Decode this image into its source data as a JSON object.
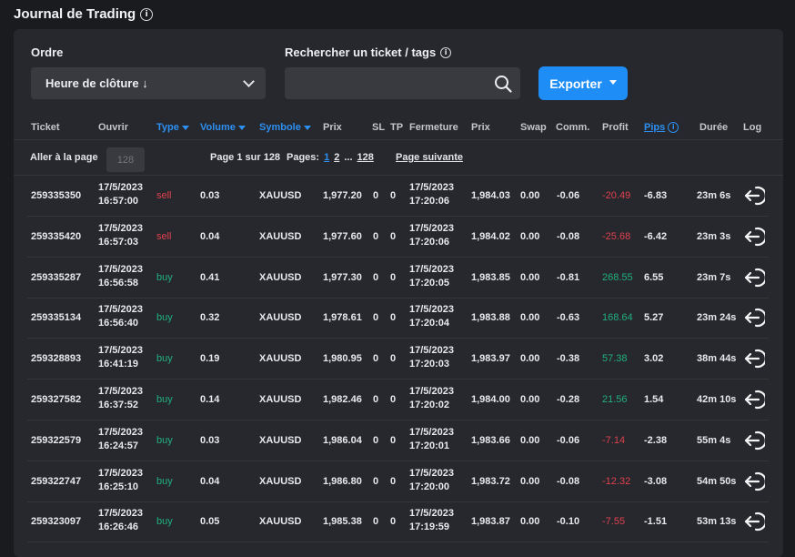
{
  "page": {
    "title": "Journal de Trading"
  },
  "filters": {
    "order_label": "Ordre",
    "order_value": "Heure de clôture ↓",
    "search_label": "Rechercher un ticket / tags",
    "search_value": "",
    "export_label": "Exporter"
  },
  "table": {
    "headers": {
      "ticket": "Ticket",
      "open": "Ouvrir",
      "type": "Type",
      "volume": "Volume",
      "symbol": "Symbole",
      "price_open": "Prix",
      "sl": "SL",
      "tp": "TP",
      "close": "Fermeture",
      "price_close": "Prix",
      "swap": "Swap",
      "comm": "Comm.",
      "profit": "Profit",
      "pips": "Pips",
      "duration": "Durée",
      "log": "Log"
    },
    "rows": [
      {
        "ticket": "259335350",
        "open_date": "17/5/2023",
        "open_time": "16:57:00",
        "type": "sell",
        "volume": "0.03",
        "symbol": "XAUUSD",
        "price_open": "1,977.20",
        "sl": "0",
        "tp": "0",
        "close_date": "17/5/2023",
        "close_time": "17:20:06",
        "price_close": "1,984.03",
        "swap": "0.00",
        "comm": "-0.06",
        "profit": "-20.49",
        "pips": "-6.83",
        "duration": "23m 6s"
      },
      {
        "ticket": "259335420",
        "open_date": "17/5/2023",
        "open_time": "16:57:03",
        "type": "sell",
        "volume": "0.04",
        "symbol": "XAUUSD",
        "price_open": "1,977.60",
        "sl": "0",
        "tp": "0",
        "close_date": "17/5/2023",
        "close_time": "17:20:06",
        "price_close": "1,984.02",
        "swap": "0.00",
        "comm": "-0.08",
        "profit": "-25.68",
        "pips": "-6.42",
        "duration": "23m 3s"
      },
      {
        "ticket": "259335287",
        "open_date": "17/5/2023",
        "open_time": "16:56:58",
        "type": "buy",
        "volume": "0.41",
        "symbol": "XAUUSD",
        "price_open": "1,977.30",
        "sl": "0",
        "tp": "0",
        "close_date": "17/5/2023",
        "close_time": "17:20:05",
        "price_close": "1,983.85",
        "swap": "0.00",
        "comm": "-0.81",
        "profit": "268.55",
        "pips": "6.55",
        "duration": "23m 7s"
      },
      {
        "ticket": "259335134",
        "open_date": "17/5/2023",
        "open_time": "16:56:40",
        "type": "buy",
        "volume": "0.32",
        "symbol": "XAUUSD",
        "price_open": "1,978.61",
        "sl": "0",
        "tp": "0",
        "close_date": "17/5/2023",
        "close_time": "17:20:04",
        "price_close": "1,983.88",
        "swap": "0.00",
        "comm": "-0.63",
        "profit": "168.64",
        "pips": "5.27",
        "duration": "23m 24s"
      },
      {
        "ticket": "259328893",
        "open_date": "17/5/2023",
        "open_time": "16:41:19",
        "type": "buy",
        "volume": "0.19",
        "symbol": "XAUUSD",
        "price_open": "1,980.95",
        "sl": "0",
        "tp": "0",
        "close_date": "17/5/2023",
        "close_time": "17:20:03",
        "price_close": "1,983.97",
        "swap": "0.00",
        "comm": "-0.38",
        "profit": "57.38",
        "pips": "3.02",
        "duration": "38m 44s"
      },
      {
        "ticket": "259327582",
        "open_date": "17/5/2023",
        "open_time": "16:37:52",
        "type": "buy",
        "volume": "0.14",
        "symbol": "XAUUSD",
        "price_open": "1,982.46",
        "sl": "0",
        "tp": "0",
        "close_date": "17/5/2023",
        "close_time": "17:20:02",
        "price_close": "1,984.00",
        "swap": "0.00",
        "comm": "-0.28",
        "profit": "21.56",
        "pips": "1.54",
        "duration": "42m 10s"
      },
      {
        "ticket": "259322579",
        "open_date": "17/5/2023",
        "open_time": "16:24:57",
        "type": "buy",
        "volume": "0.03",
        "symbol": "XAUUSD",
        "price_open": "1,986.04",
        "sl": "0",
        "tp": "0",
        "close_date": "17/5/2023",
        "close_time": "17:20:01",
        "price_close": "1,983.66",
        "swap": "0.00",
        "comm": "-0.06",
        "profit": "-7.14",
        "pips": "-2.38",
        "duration": "55m 4s"
      },
      {
        "ticket": "259322747",
        "open_date": "17/5/2023",
        "open_time": "16:25:10",
        "type": "buy",
        "volume": "0.04",
        "symbol": "XAUUSD",
        "price_open": "1,986.80",
        "sl": "0",
        "tp": "0",
        "close_date": "17/5/2023",
        "close_time": "17:20:00",
        "price_close": "1,983.72",
        "swap": "0.00",
        "comm": "-0.08",
        "profit": "-12.32",
        "pips": "-3.08",
        "duration": "54m 50s"
      },
      {
        "ticket": "259323097",
        "open_date": "17/5/2023",
        "open_time": "16:26:46",
        "type": "buy",
        "volume": "0.05",
        "symbol": "XAUUSD",
        "price_open": "1,985.38",
        "sl": "0",
        "tp": "0",
        "close_date": "17/5/2023",
        "close_time": "17:19:59",
        "price_close": "1,983.87",
        "swap": "0.00",
        "comm": "-0.10",
        "profit": "-7.55",
        "pips": "-1.51",
        "duration": "53m 13s"
      }
    ]
  },
  "pager": {
    "goto_label": "Aller à la page",
    "goto_placeholder": "128",
    "page_info": "Page 1 sur 128",
    "pages_label": "Pages:",
    "page_1": "1",
    "page_2": "2",
    "ellipsis": "...",
    "page_last": "128",
    "next_label": "Page suivante"
  },
  "colors": {
    "accent": "#1f8df6",
    "sell": "#e0414e",
    "buy": "#22b07e",
    "background": "#1a1b1f",
    "panel": "#26282d"
  },
  "icons": {
    "title_info": "info-icon",
    "search": "search-icon",
    "order_dropdown": "chevron-down-icon",
    "export_dropdown": "caret-down-icon",
    "log": "log-entry-icon"
  }
}
